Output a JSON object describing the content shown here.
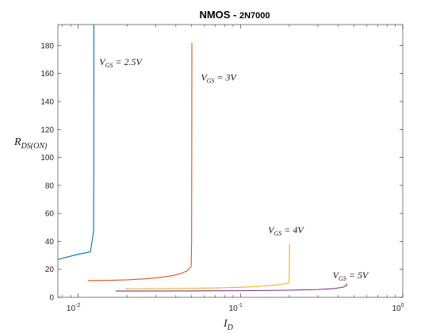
{
  "chart_data": {
    "type": "line",
    "title_main": "NMOS - ",
    "title_part": "2N7000",
    "xlabel_main": "I",
    "xlabel_sub": "D",
    "ylabel_main": "R",
    "ylabel_sub": "DS(ON)",
    "xscale": "log",
    "xlim": [
      0.0075,
      1
    ],
    "ylim": [
      0,
      195
    ],
    "xticks": [
      0.01,
      0.1,
      1
    ],
    "xtick_labels": [
      {
        "base": "10",
        "exp": "-2"
      },
      {
        "base": "10",
        "exp": "-1"
      },
      {
        "base": "10",
        "exp": "0"
      }
    ],
    "yticks": [
      0,
      20,
      40,
      60,
      80,
      100,
      120,
      140,
      160,
      180
    ],
    "ytick_labels": [
      "0",
      "20",
      "40",
      "60",
      "80",
      "100",
      "120",
      "140",
      "160",
      "180"
    ],
    "grid": false,
    "legend": "none",
    "series": [
      {
        "color": "#0072BD",
        "label_main": "V",
        "label_sub": "GS",
        "label_rest": " = 2.5V",
        "label_at": {
          "x": 0.0135,
          "y": 166
        },
        "points": [
          [
            0.0075,
            27
          ],
          [
            0.0087,
            29
          ],
          [
            0.0102,
            31
          ],
          [
            0.0119,
            32.5
          ],
          [
            0.01245,
            47
          ],
          [
            0.01248,
            100
          ],
          [
            0.0125,
            195
          ]
        ]
      },
      {
        "color": "#D95319",
        "label_main": "V",
        "label_sub": "GS",
        "label_rest": " = 3V",
        "label_at": {
          "x": 0.057,
          "y": 155
        },
        "points": [
          [
            0.0115,
            12
          ],
          [
            0.015,
            12.1
          ],
          [
            0.02,
            12.5
          ],
          [
            0.026,
            13.2
          ],
          [
            0.032,
            14.2
          ],
          [
            0.038,
            15.5
          ],
          [
            0.043,
            17
          ],
          [
            0.047,
            19
          ],
          [
            0.0497,
            22
          ],
          [
            0.05,
            40
          ],
          [
            0.0501,
            100
          ],
          [
            0.0502,
            182
          ]
        ]
      },
      {
        "color": "#EDB120",
        "label_main": "V",
        "label_sub": "GS",
        "label_rest": " = 4V",
        "label_at": {
          "x": 0.148,
          "y": 46
        },
        "points": [
          [
            0.0195,
            6
          ],
          [
            0.04,
            6.3
          ],
          [
            0.07,
            6.7
          ],
          [
            0.1,
            7.2
          ],
          [
            0.13,
            7.8
          ],
          [
            0.16,
            8.6
          ],
          [
            0.185,
            9.5
          ],
          [
            0.198,
            10.5
          ],
          [
            0.2,
            15
          ],
          [
            0.2005,
            38
          ]
        ]
      },
      {
        "color": "#7E2F8E",
        "label_main": "V",
        "label_sub": "GS",
        "label_rest": " = 5V",
        "label_at": {
          "x": 0.37,
          "y": 13.5
        },
        "points": [
          [
            0.017,
            4.5
          ],
          [
            0.05,
            4.6
          ],
          [
            0.1,
            4.75
          ],
          [
            0.2,
            5.1
          ],
          [
            0.3,
            5.6
          ],
          [
            0.38,
            6.3
          ],
          [
            0.43,
            7.3
          ],
          [
            0.45,
            8.5
          ],
          [
            0.4505,
            10
          ]
        ]
      }
    ]
  }
}
